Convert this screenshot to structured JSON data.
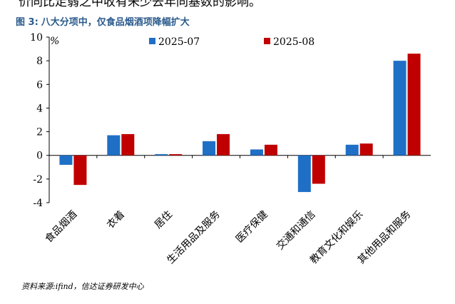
{
  "page": {
    "top_text": "价同比走弱之中收有未少去年同基数的影响。",
    "figure_label": "图 3:",
    "figure_title": "八大分项中，仅食品烟酒项降幅扩大",
    "source": "资料来源:ifind，信达证券研发中心"
  },
  "chart_data": {
    "type": "bar",
    "title": "八大分项中，仅食品烟酒项降幅扩大",
    "unit_label": "%",
    "categories": [
      "食品烟酒",
      "衣着",
      "居住",
      "生活用品及服务",
      "医疗保健",
      "交通和通信",
      "教育文化和娱乐",
      "其他用品和服务"
    ],
    "series": [
      {
        "name": "2025-07",
        "color": "#1f6fc6",
        "values": [
          -0.8,
          1.7,
          0.1,
          1.2,
          0.5,
          -3.1,
          0.9,
          8.0
        ]
      },
      {
        "name": "2025-08",
        "color": "#c00000",
        "values": [
          -2.5,
          1.8,
          0.1,
          1.8,
          0.9,
          -2.4,
          1.0,
          8.6
        ]
      }
    ],
    "ylim": [
      -4,
      10
    ],
    "yticks": [
      -4,
      -2,
      0,
      2,
      4,
      6,
      8,
      10
    ],
    "ytick_labels": [
      "-4",
      "-2",
      "0",
      "2",
      "4",
      "6",
      "8",
      "10"
    ],
    "grid": false,
    "legend": "top-center"
  }
}
